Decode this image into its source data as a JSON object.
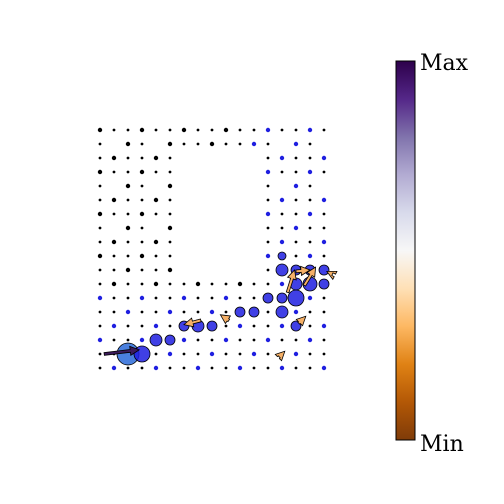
{
  "chart_data": {
    "type": "scatter",
    "title": "",
    "xlabel": "",
    "ylabel": "",
    "grid": false,
    "point_fill": "#1f1fe0",
    "point_fill_alt": "#2a6ad8",
    "point_edge": "#000000",
    "arrow_fill": "#f5b067",
    "arrow_dark": "#3b1a5a",
    "colorbar": {
      "max_label": "Max",
      "min_label": "Min",
      "colormap": "PuOr_r",
      "stops": [
        "#2d004b",
        "#542788",
        "#8073ac",
        "#b2abd2",
        "#d8daeb",
        "#f7f7f7",
        "#fee0b6",
        "#fdb863",
        "#e08214",
        "#b35806",
        "#7f3b08"
      ]
    },
    "grid_levels": [
      0,
      1,
      2,
      3,
      4,
      5,
      6,
      7,
      8,
      9,
      10,
      11,
      12,
      13,
      14,
      15,
      16,
      17,
      18,
      19,
      20
    ],
    "big_points": [
      {
        "col": 2,
        "row": 16,
        "size": 10
      },
      {
        "col": 3,
        "row": 16,
        "size": 7
      },
      {
        "col": 4,
        "row": 15,
        "size": 5
      },
      {
        "col": 5,
        "row": 15,
        "size": 4
      },
      {
        "col": 6,
        "row": 14,
        "size": 4
      },
      {
        "col": 7,
        "row": 14,
        "size": 5
      },
      {
        "col": 8,
        "row": 14,
        "size": 4
      },
      {
        "col": 10,
        "row": 13,
        "size": 4
      },
      {
        "col": 11,
        "row": 13,
        "size": 4
      },
      {
        "col": 12,
        "row": 12,
        "size": 4
      },
      {
        "col": 13,
        "row": 12,
        "size": 4
      },
      {
        "col": 13,
        "row": 13,
        "size": 5
      },
      {
        "col": 14,
        "row": 12,
        "size": 7
      },
      {
        "col": 14,
        "row": 11,
        "size": 5
      },
      {
        "col": 15,
        "row": 11,
        "size": 6
      },
      {
        "col": 16,
        "row": 11,
        "size": 4
      },
      {
        "col": 13,
        "row": 10,
        "size": 5
      },
      {
        "col": 14,
        "row": 10,
        "size": 4
      },
      {
        "col": 15,
        "row": 10,
        "size": 4
      },
      {
        "col": 16,
        "row": 10,
        "size": 4
      },
      {
        "col": 13,
        "row": 9,
        "size": 3
      },
      {
        "col": 14,
        "row": 14,
        "size": 4
      }
    ],
    "arrows": [
      {
        "x0": 0.3,
        "y0": 16.0,
        "x1": 2.8,
        "y1": 15.7,
        "color": "dark"
      },
      {
        "x0": 7.2,
        "y0": 13.6,
        "x1": 6.0,
        "y1": 13.9,
        "color": "orange"
      },
      {
        "x0": 9.2,
        "y0": 13.6,
        "x1": 8.6,
        "y1": 13.2,
        "color": "orange"
      },
      {
        "x0": 13.4,
        "y0": 11.6,
        "x1": 13.9,
        "y1": 10.0,
        "color": "orange"
      },
      {
        "x0": 14.6,
        "y0": 11.1,
        "x1": 15.4,
        "y1": 9.8,
        "color": "orange"
      },
      {
        "x0": 14.0,
        "y0": 10.1,
        "x1": 15.0,
        "y1": 10.0,
        "color": "orange"
      },
      {
        "x0": 16.6,
        "y0": 10.3,
        "x1": 16.2,
        "y1": 10.1,
        "color": "orange"
      },
      {
        "x0": 14.2,
        "y0": 13.8,
        "x1": 14.7,
        "y1": 13.3,
        "color": "orange"
      },
      {
        "x0": 12.8,
        "y0": 16.2,
        "x1": 13.2,
        "y1": 15.8,
        "color": "orange"
      }
    ]
  }
}
